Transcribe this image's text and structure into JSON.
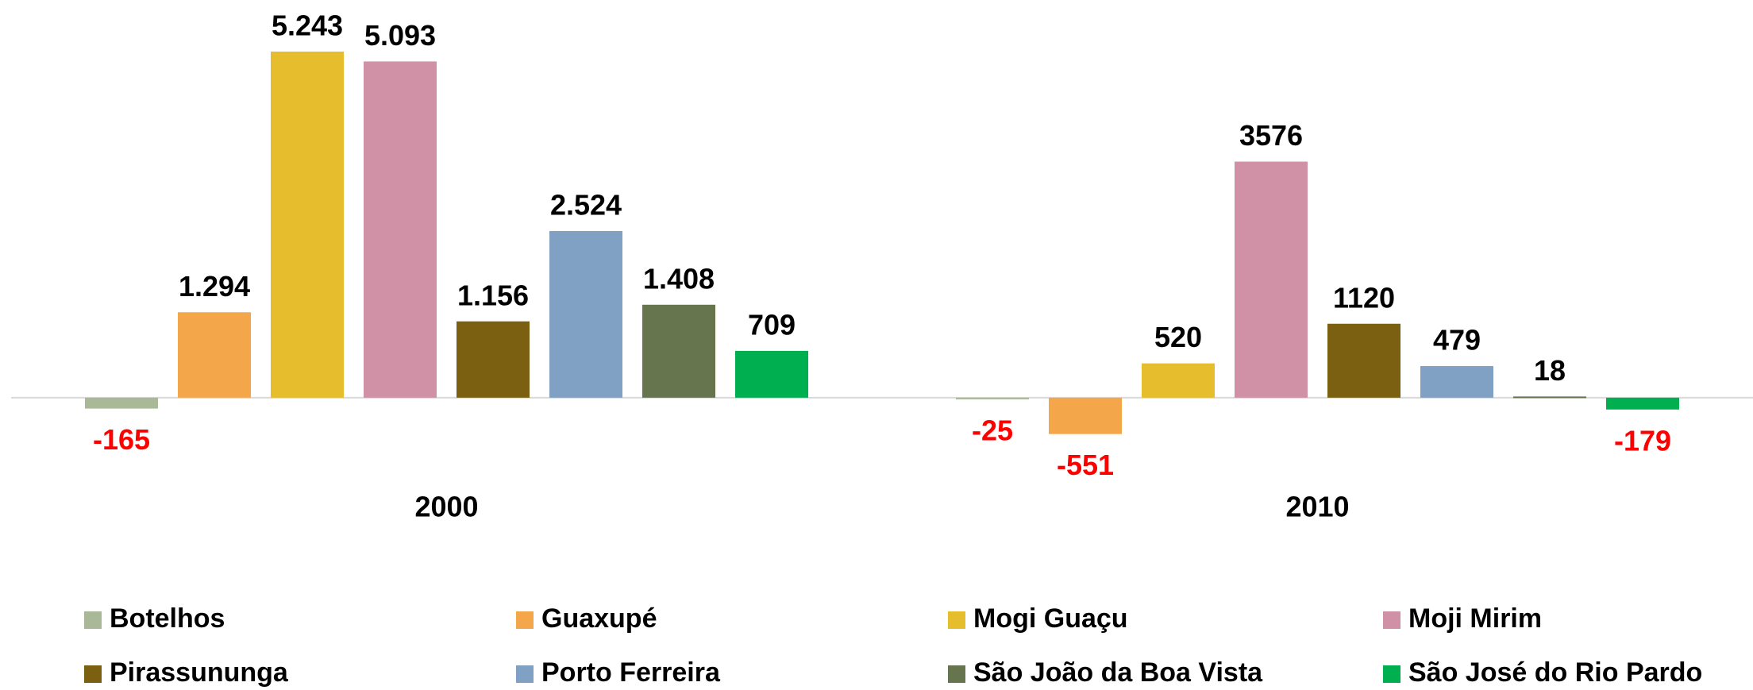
{
  "chart_data": {
    "type": "bar",
    "categories": [
      "2000",
      "2010"
    ],
    "ylim": [
      -1000,
      6000
    ],
    "legend": "bottom",
    "negative_label_color": "#ff0000",
    "series": [
      {
        "name": "Botelhos",
        "color": "#a9b998",
        "values": [
          -165,
          -25
        ],
        "value_labels": [
          "-165",
          "-25"
        ]
      },
      {
        "name": "Guaxupé",
        "color": "#f4a64b",
        "values": [
          1294,
          -551
        ],
        "value_labels": [
          "1.294",
          "-551"
        ]
      },
      {
        "name": "Mogi Guaçu",
        "color": "#e6bd2c",
        "values": [
          5243,
          520
        ],
        "value_labels": [
          "5.243",
          "520"
        ]
      },
      {
        "name": "Moji Mirim",
        "color": "#d090a5",
        "values": [
          5093,
          3576
        ],
        "value_labels": [
          "5.093",
          "3576"
        ]
      },
      {
        "name": "Pirassununga",
        "color": "#7a6010",
        "values": [
          1156,
          1120
        ],
        "value_labels": [
          "1.156",
          "1120"
        ]
      },
      {
        "name": "Porto Ferreira",
        "color": "#80a0c4",
        "values": [
          2524,
          479
        ],
        "value_labels": [
          "2.524",
          "479"
        ]
      },
      {
        "name": "São João da Boa Vista",
        "color": "#66754e",
        "values": [
          1408,
          18
        ],
        "value_labels": [
          "1.408",
          "18"
        ]
      },
      {
        "name": "São José do Rio Pardo",
        "color": "#00b050",
        "values": [
          709,
          -179
        ],
        "value_labels": [
          "709",
          "-179"
        ]
      }
    ]
  }
}
